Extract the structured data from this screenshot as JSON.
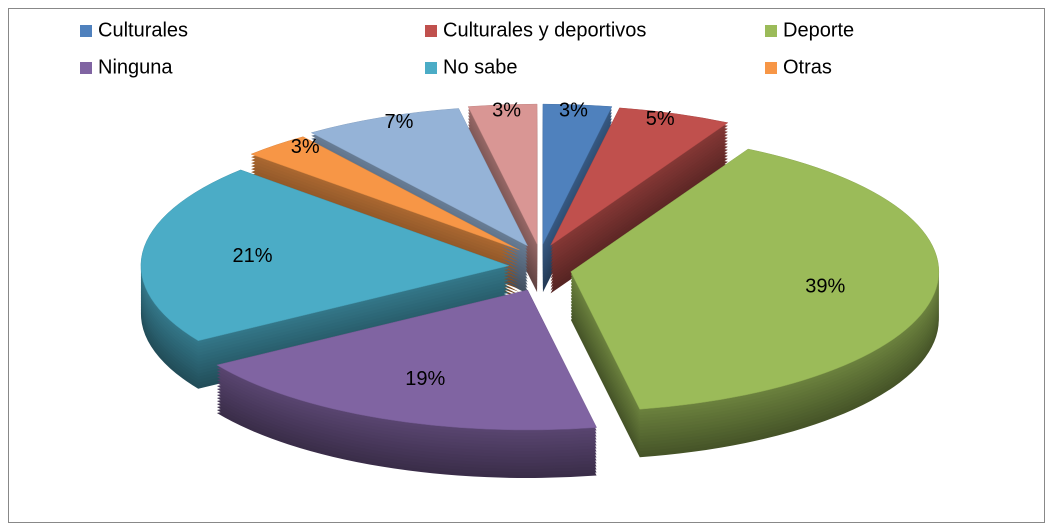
{
  "chart_data": {
    "type": "pie",
    "categories": [
      "Culturales",
      "Culturales y deportivos",
      "Deporte",
      "Ninguna",
      "No sabe",
      "Otras",
      null,
      null
    ],
    "values": [
      3,
      5,
      39,
      19,
      21,
      3,
      7,
      3
    ],
    "value_labels": [
      "3%",
      "5%",
      "39%",
      "19%",
      "21%",
      "3%",
      "7%",
      "3%"
    ],
    "colors": [
      "#4f81bd",
      "#c0504d",
      "#9bbb59",
      "#8064a2",
      "#4bacc6",
      "#f79646",
      "#95b3d7",
      "#d99694"
    ],
    "legend": "top"
  }
}
